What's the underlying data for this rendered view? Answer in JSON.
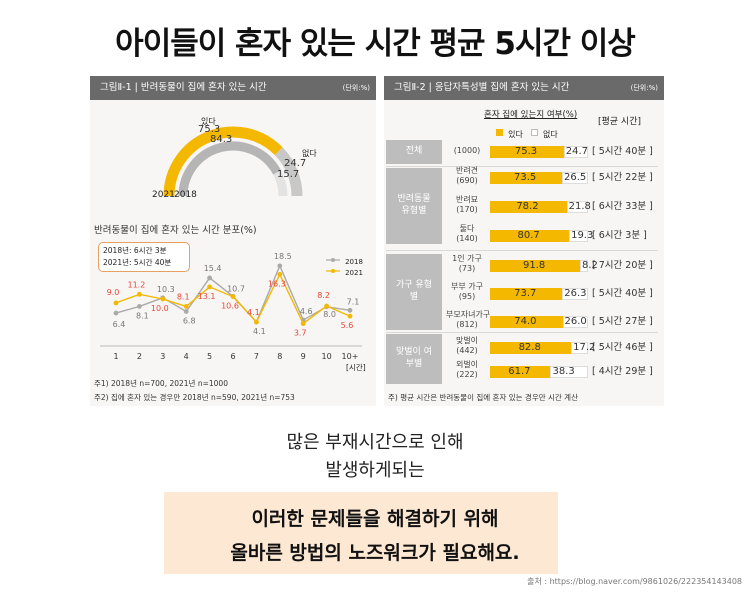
{
  "headline": "아이들이 혼자 있는 시간 평균 5시간 이상",
  "left_figure": {
    "title": "그림Ⅱ-1 | 반려동물이 집에 혼자 있는 시간",
    "unit": "(단위:%)",
    "gauge": {
      "yes_label": "있다",
      "no_label": "없다",
      "year_2021": "2021",
      "year_2018": "2018",
      "yes_2021": 75.3,
      "yes_2018": 84.3,
      "no_2021": 24.7,
      "no_2018": 15.7
    },
    "line_title": "반려동물이 집에 혼자 있는 시간 분포(%)",
    "legend_box": [
      "2018년: 6시간 3분",
      "2021년: 5시간 40분"
    ],
    "legend": [
      "2018",
      "2021"
    ],
    "x_unit": "[시간]",
    "notes": [
      "주1) 2018년 n=700, 2021년 n=1000",
      "주2) 집에 혼자 있는 경우만 2018년 n=590, 2021년 n=753"
    ]
  },
  "right_figure": {
    "title": "그림Ⅱ-2 | 응답자특성별 집에 혼자 있는 시간",
    "unit": "(단위:%)",
    "subtitle": "혼자 집에 있는지 여부(%)",
    "legend": [
      "있다",
      "없다"
    ],
    "avg_header": "[평균 시간]",
    "groups": [
      {
        "label": "전체",
        "rows": [
          0
        ]
      },
      {
        "label": "반려동물 유형별",
        "rows": [
          1,
          2,
          3
        ]
      },
      {
        "label": "가구 유형별",
        "rows": [
          4,
          5,
          6
        ]
      },
      {
        "label": "맞벌이 여부별",
        "rows": [
          7,
          8
        ]
      }
    ],
    "rows": [
      {
        "label": "",
        "n": "(1000)",
        "yes": 75.3,
        "no": 24.7,
        "yes_text": "75.3",
        "no_text": "24.7",
        "avg": "[ 5시간 40분 ]"
      },
      {
        "label": "반려견",
        "n": "(690)",
        "yes": 73.5,
        "no": 26.5,
        "yes_text": "73.5",
        "no_text": "26.5",
        "avg": "[ 5시간 22분 ]"
      },
      {
        "label": "반려묘",
        "n": "(170)",
        "yes": 78.2,
        "no": 21.8,
        "yes_text": "78.2",
        "no_text": "21.8",
        "avg": "[ 6시간 33분 ]"
      },
      {
        "label": "둘다",
        "n": "(140)",
        "yes": 80.7,
        "no": 19.3,
        "yes_text": "80.7",
        "no_text": "19.3",
        "avg": "[ 6시간 3분 ]"
      },
      {
        "label": "1인 가구",
        "n": "(73)",
        "yes": 91.8,
        "no": 8.2,
        "yes_text": "91.8",
        "no_text": "8.2",
        "avg": "[ 7시간 20분 ]"
      },
      {
        "label": "부부 가구",
        "n": "(95)",
        "yes": 73.7,
        "no": 26.3,
        "yes_text": "73.7",
        "no_text": "26.3",
        "avg": "[ 5시간 40분 ]"
      },
      {
        "label": "부모자녀가구",
        "n": "(812)",
        "yes": 74.0,
        "no": 26.0,
        "yes_text": "74.0",
        "no_text": "26.0",
        "avg": "[ 5시간 27분 ]"
      },
      {
        "label": "맞벌이",
        "n": "(442)",
        "yes": 82.8,
        "no": 17.2,
        "yes_text": "82.8",
        "no_text": "17.2",
        "avg": "[ 5시간 46분 ]"
      },
      {
        "label": "외벌이",
        "n": "(222)",
        "yes": 61.7,
        "no": 38.3,
        "yes_text": "61.7",
        "no_text": "38.3",
        "avg": "[ 4시간 29분 ]"
      }
    ],
    "note": "주) 평균 시간은 반려동물이 집에 혼자 있는 경우만 시간 계산"
  },
  "body_text": [
    "많은 부재시간으로 인해",
    "발생하게되는"
  ],
  "highlight_text": [
    "이러한 문제들을 해결하기 위해",
    "올바른 방법의 노즈워크가 필요해요."
  ],
  "source": "출처 : https://blog.naver.com/9861026/222354143408",
  "colors": {
    "y2018": "#aaaaaa",
    "y2021": "#f5b800",
    "label2021": "#e8463a",
    "bar_yes": "#f5b800",
    "header": "#6a6a6a"
  },
  "chart_data": [
    {
      "type": "pie",
      "title": "반려동물이 집에 혼자 있는 시간",
      "series": [
        {
          "name": "2021",
          "values": [
            75.3,
            24.7
          ]
        },
        {
          "name": "2018",
          "values": [
            84.3,
            15.7
          ]
        }
      ],
      "categories": [
        "있다",
        "없다"
      ]
    },
    {
      "type": "line",
      "title": "반려동물이 집에 혼자 있는 시간 분포(%)",
      "x": [
        "1",
        "2",
        "3",
        "4",
        "5",
        "6",
        "7",
        "8",
        "9",
        "10",
        "10+"
      ],
      "xlabel": "[시간]",
      "series": [
        {
          "name": "2018",
          "values": [
            6.4,
            8.1,
            10.3,
            6.8,
            15.4,
            10.7,
            4.1,
            18.5,
            4.6,
            8.0,
            7.1
          ]
        },
        {
          "name": "2021",
          "values": [
            9.0,
            11.2,
            10.0,
            8.1,
            13.1,
            10.6,
            4.1,
            16.3,
            3.7,
            8.2,
            5.6
          ]
        }
      ],
      "ylim": [
        0,
        20
      ],
      "legend": "top-right"
    },
    {
      "type": "bar",
      "title": "응답자특성별 집에 혼자 있는 시간",
      "categories": [
        "전체",
        "반려견",
        "반려묘",
        "둘다",
        "1인 가구",
        "부부 가구",
        "부모자녀가구",
        "맞벌이",
        "외벌이"
      ],
      "series": [
        {
          "name": "있다",
          "values": [
            75.3,
            73.5,
            78.2,
            80.7,
            91.8,
            73.7,
            74.0,
            82.8,
            61.7
          ]
        },
        {
          "name": "없다",
          "values": [
            24.7,
            26.5,
            21.8,
            19.3,
            8.2,
            26.3,
            26.0,
            17.2,
            38.3
          ]
        }
      ],
      "ylim": [
        0,
        100
      ],
      "legend": "top"
    }
  ]
}
